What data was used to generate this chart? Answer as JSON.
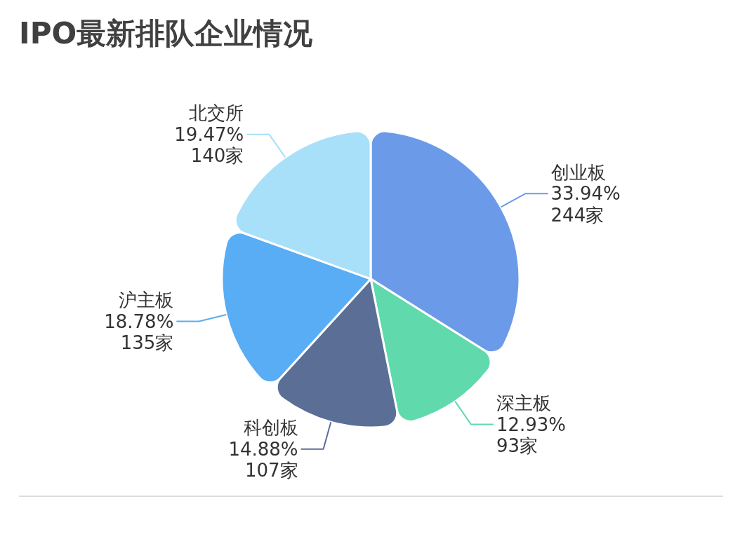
{
  "chart_data": {
    "type": "pie",
    "title": "IPO最新排队企业情况",
    "categories": [
      "创业板",
      "深主板",
      "科创板",
      "沪主板",
      "北交所"
    ],
    "values": [
      244,
      93,
      107,
      135,
      140
    ],
    "colors": [
      "#6b9be8",
      "#60d9ac",
      "#5a6e96",
      "#58adf4",
      "#a8dff9"
    ],
    "value_labels": [
      "33.94%\n244家",
      "12.93%\n93家",
      "14.88%\n107家",
      "18.78%\n135家",
      "19.47%\n140家"
    ]
  }
}
